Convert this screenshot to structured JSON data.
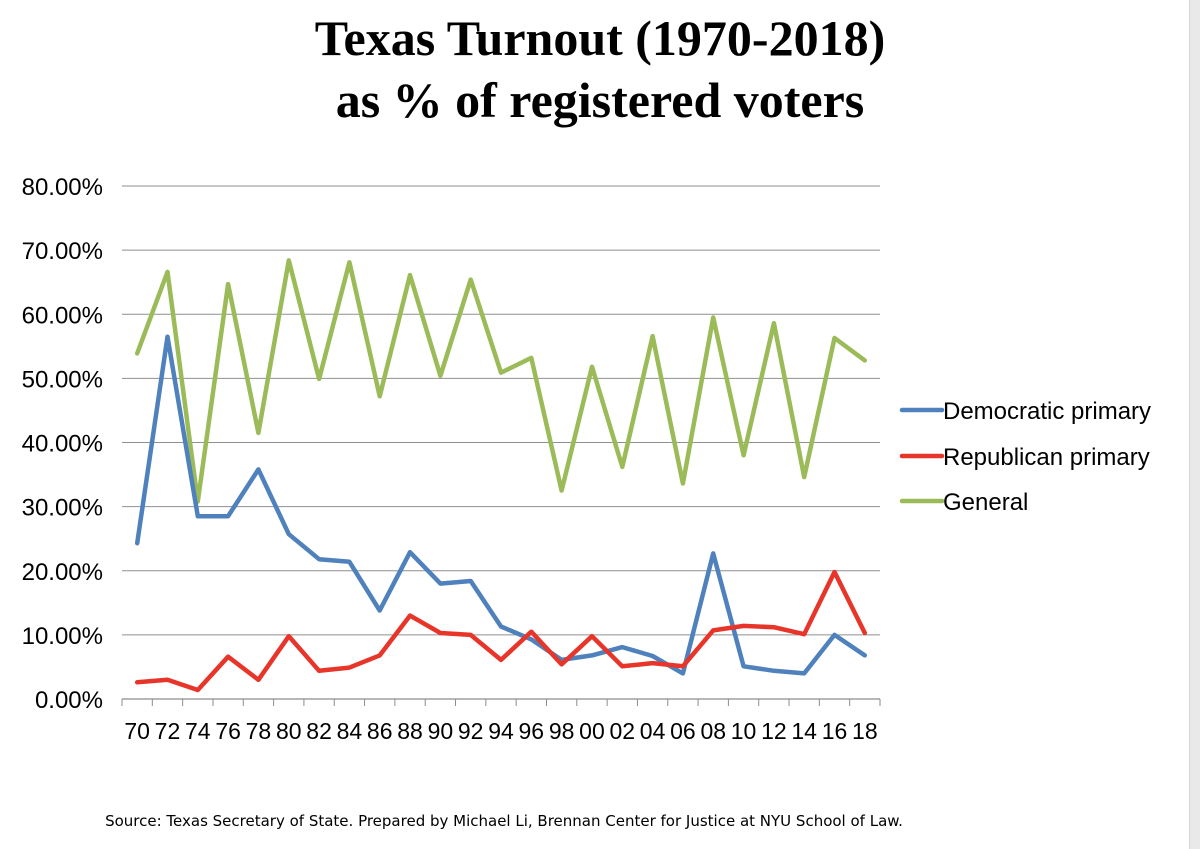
{
  "title": {
    "line1": "Texas Turnout (1970-2018)",
    "line2": "as % of registered voters"
  },
  "source": "Source: Texas Secretary of State. Prepared by Michael Li, Brennan Center for Justice at NYU School of Law.",
  "chart_data": {
    "type": "line",
    "title": "Texas Turnout (1970-2018) as % of registered voters",
    "xlabel": "",
    "ylabel": "",
    "categories": [
      "70",
      "72",
      "74",
      "76",
      "78",
      "80",
      "82",
      "84",
      "86",
      "88",
      "90",
      "92",
      "94",
      "96",
      "98",
      "00",
      "02",
      "04",
      "06",
      "08",
      "10",
      "12",
      "14",
      "16",
      "18"
    ],
    "yticks": [
      "0.00%",
      "10.00%",
      "20.00%",
      "30.00%",
      "40.00%",
      "50.00%",
      "60.00%",
      "70.00%",
      "80.00%"
    ],
    "ylim": [
      0,
      80
    ],
    "grid": true,
    "legend_position": "right",
    "series": [
      {
        "name": "Democratic primary",
        "color": "#4f81bd",
        "values": [
          24.3,
          56.5,
          28.5,
          28.5,
          35.8,
          25.7,
          21.8,
          21.4,
          13.8,
          22.9,
          18.0,
          18.4,
          11.3,
          9.3,
          6.1,
          6.8,
          8.1,
          6.7,
          4.0,
          22.7,
          5.1,
          4.4,
          4.0,
          10.0,
          6.8
        ]
      },
      {
        "name": "Republican primary",
        "color": "#e8352a",
        "values": [
          2.6,
          3.0,
          1.4,
          6.6,
          3.0,
          9.8,
          4.4,
          4.9,
          6.8,
          13.0,
          10.3,
          10.0,
          6.1,
          10.5,
          5.4,
          9.8,
          5.1,
          5.6,
          5.1,
          10.7,
          11.4,
          11.2,
          10.1,
          19.8,
          10.3
        ]
      },
      {
        "name": "General",
        "color": "#9bbb59",
        "values": [
          53.9,
          66.6,
          30.8,
          64.7,
          41.5,
          68.4,
          49.9,
          68.1,
          47.2,
          66.1,
          50.4,
          65.4,
          50.9,
          53.2,
          32.5,
          51.8,
          36.2,
          56.6,
          33.6,
          59.5,
          38.0,
          58.6,
          34.6,
          56.3,
          52.8
        ]
      }
    ]
  }
}
